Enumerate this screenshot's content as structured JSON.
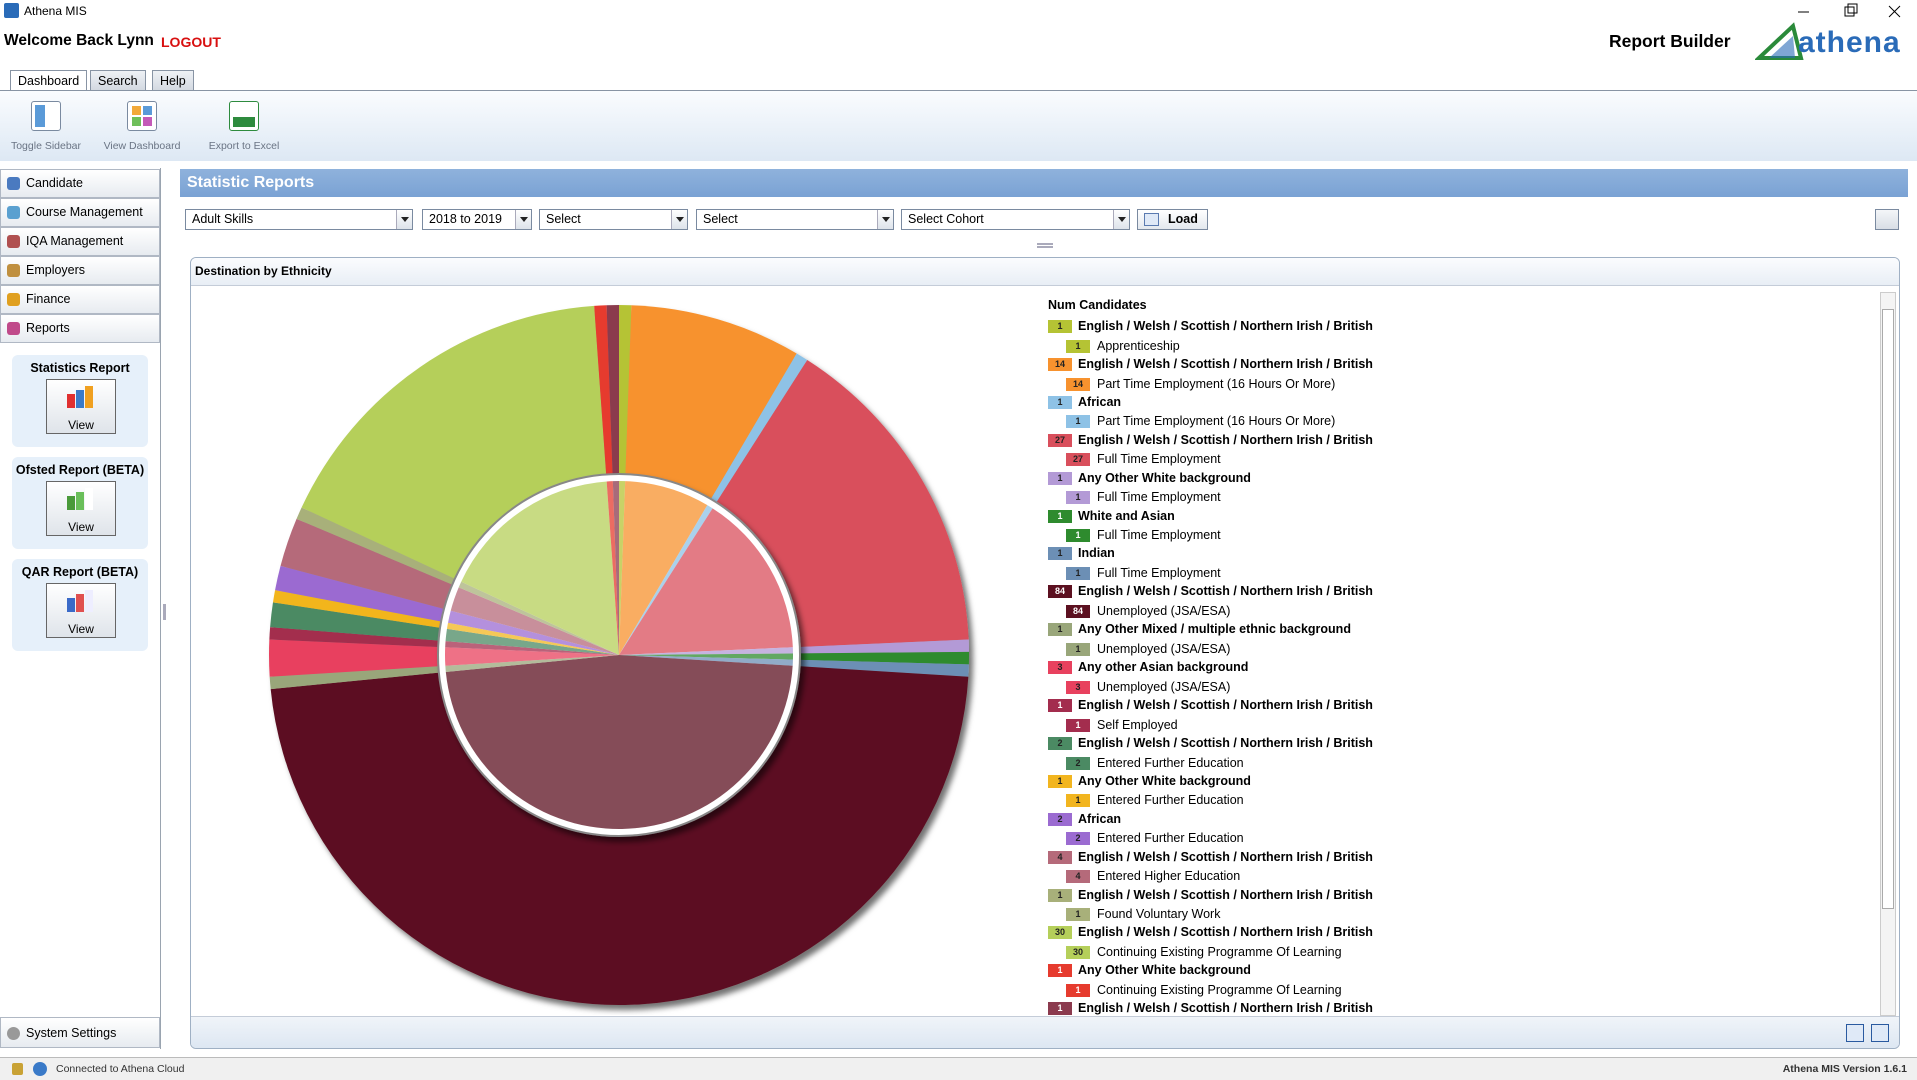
{
  "window": {
    "title": "Athena MIS"
  },
  "header": {
    "welcome": "Welcome Back Lynn",
    "logout": "LOGOUT",
    "page_title": "Report Builder",
    "logo": "athena"
  },
  "tabs": [
    "Dashboard",
    "Search",
    "Help"
  ],
  "toolbar": [
    "Toggle Sidebar",
    "View Dashboard",
    "Export to Excel"
  ],
  "sidebar": {
    "menu": [
      "Candidate",
      "Course Management",
      "IQA Management",
      "Employers",
      "Finance",
      "Reports"
    ],
    "reports": [
      {
        "title": "Statistics Report",
        "button": "View"
      },
      {
        "title": "Ofsted Report (BETA)",
        "button": "View"
      },
      {
        "title": "QAR Report (BETA)",
        "button": "View"
      }
    ],
    "settings": "System Settings"
  },
  "main": {
    "title": "Statistic Reports",
    "filters": [
      "Adult Skills",
      "2018 to 2019",
      "Select",
      "Select",
      "Select Cohort"
    ],
    "load": "Load"
  },
  "chart_data": {
    "type": "pie",
    "title": "Destination by Ethnicity",
    "legend_title": "Num Candidates",
    "categories": [
      "English / Welsh / Scottish / Northern Irish / British",
      "English / Welsh / Scottish / Northern Irish / British",
      "African",
      "English / Welsh / Scottish / Northern Irish / British",
      "Any Other White background",
      "White and Asian",
      "Indian",
      "English / Welsh / Scottish / Northern Irish / British",
      "Any Other Mixed / multiple ethnic background",
      "Any other Asian background",
      "English / Welsh / Scottish / Northern Irish / British",
      "English / Welsh / Scottish / Northern Irish / British",
      "Any Other White background",
      "African",
      "English / Welsh / Scottish / Northern Irish / British",
      "English / Welsh / Scottish / Northern Irish / British",
      "English / Welsh / Scottish / Northern Irish / British",
      "Any Other White background",
      "English / Welsh / Scottish / Northern Irish / British"
    ],
    "values": [
      1,
      14,
      1,
      27,
      1,
      1,
      1,
      84,
      1,
      3,
      1,
      2,
      1,
      2,
      4,
      1,
      30,
      1,
      1
    ],
    "colors": [
      "#b5c334",
      "#f7922e",
      "#8ec2e6",
      "#d94f5c",
      "#b39ad6",
      "#2e8b2e",
      "#6c8fb5",
      "#5c1020",
      "#99a67a",
      "#e8415e",
      "#a32d4e",
      "#4b8a63",
      "#f2b51f",
      "#9b6bd1",
      "#b56a7a",
      "#a8b07a",
      "#b5cf5a",
      "#e63b2e",
      "#8b3a4e"
    ],
    "subcategories": [
      "Apprenticeship",
      "Part Time Employment (16 Hours Or More)",
      "Part Time Employment (16 Hours Or More)",
      "Full Time Employment",
      "Full Time Employment",
      "Full Time Employment",
      "Full Time Employment",
      "Unemployed (JSA/ESA)",
      "Unemployed (JSA/ESA)",
      "Unemployed (JSA/ESA)",
      "Self Employed",
      "Entered Further Education",
      "Entered Further Education",
      "Entered Further Education",
      "Entered Higher Education",
      "Found Voluntary Work",
      "Continuing Existing Programme Of Learning",
      "Continuing Existing Programme Of Learning",
      null
    ],
    "subvalues": [
      1,
      14,
      1,
      27,
      1,
      1,
      1,
      84,
      1,
      3,
      1,
      2,
      1,
      2,
      4,
      1,
      30,
      1,
      null
    ]
  },
  "status": {
    "connection": "Connected to Athena Cloud",
    "version": "Athena MIS Version 1.6.1"
  }
}
